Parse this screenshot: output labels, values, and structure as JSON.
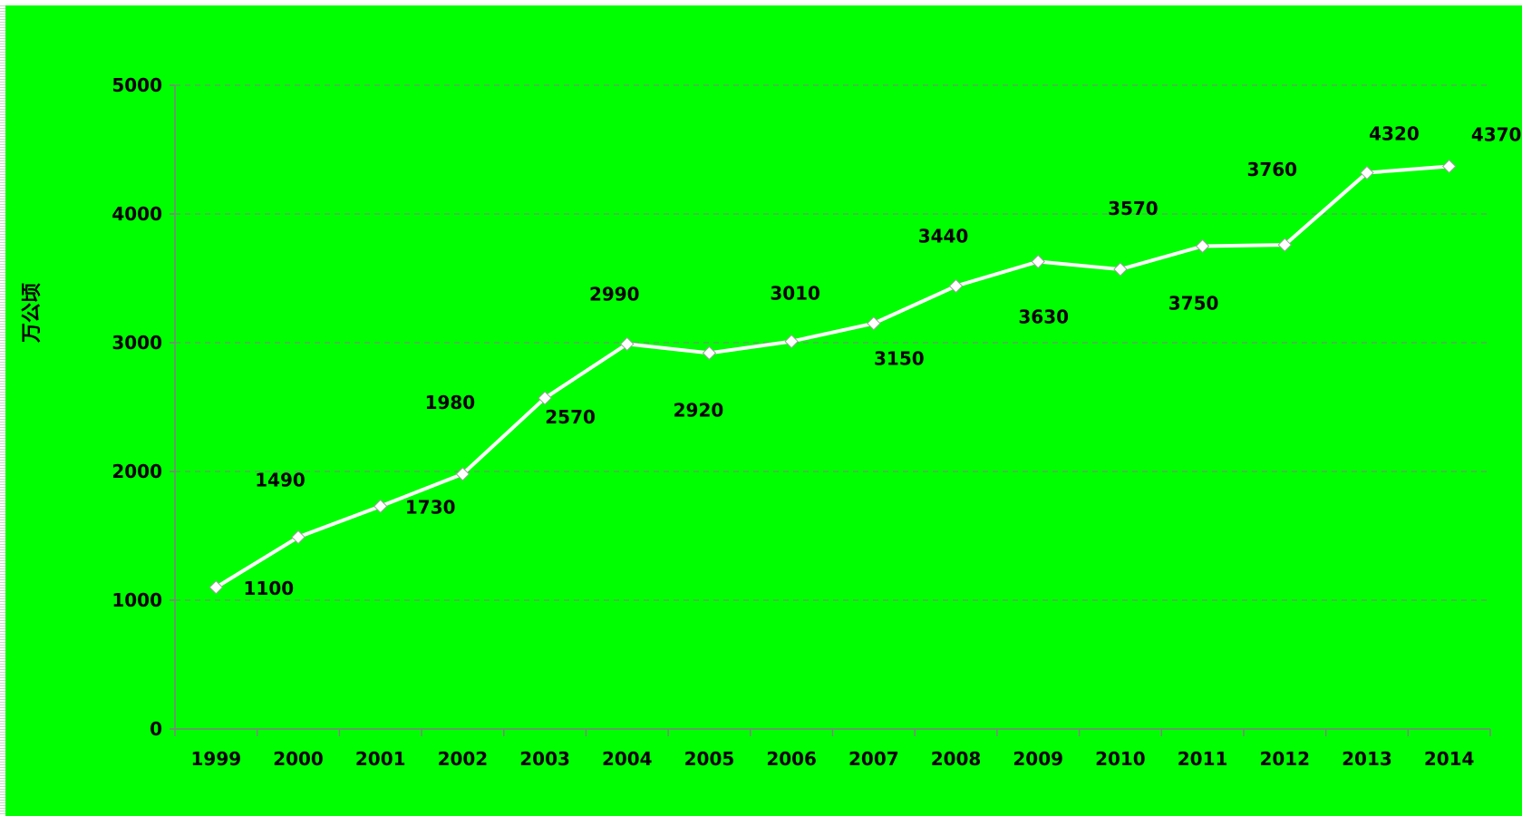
{
  "chart_data": {
    "type": "line",
    "title": "",
    "xlabel": "",
    "ylabel": "万公顷",
    "categories": [
      "1999",
      "2000",
      "2001",
      "2002",
      "2003",
      "2004",
      "2005",
      "2006",
      "2007",
      "2008",
      "2009",
      "2010",
      "2011",
      "2012",
      "2013",
      "2014"
    ],
    "series": [
      {
        "values": [
          1100,
          1490,
          1730,
          1980,
          2570,
          2990,
          2920,
          3010,
          3150,
          3440,
          3630,
          3570,
          3750,
          3760,
          4320,
          4370
        ],
        "point_label_values": [
          1100,
          1490,
          1730,
          1980,
          2570,
          2990,
          2920,
          3010,
          3150,
          3440,
          3630,
          3570,
          3750,
          3760,
          4320,
          4370
        ]
      }
    ],
    "ylim": [
      0,
      5000
    ],
    "yticks": [
      0,
      1000,
      2000,
      3000,
      4000,
      5000
    ],
    "grid": true,
    "legend": "none",
    "colors": {
      "background": "#00ff00",
      "line": "#ffffff",
      "grid": "#808080",
      "axis": "#808080",
      "text": "#000000"
    }
  }
}
